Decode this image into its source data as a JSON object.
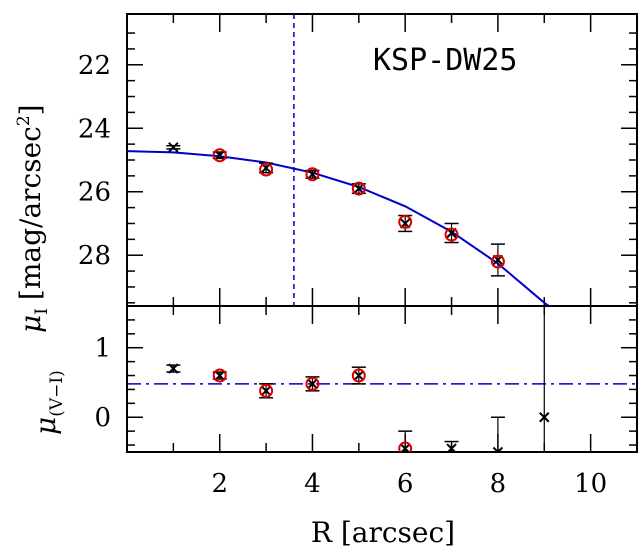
{
  "chart_data": [
    {
      "type": "scatter",
      "title": "KSP-DW25",
      "ylabel_main": "μ",
      "ylabel_sub": "I",
      "ylabel_bracket": "[mag/arcsec",
      "ylabel_sup": "2",
      "ylabel_close": "]",
      "xlim": [
        0,
        11
      ],
      "ylim": [
        29.6,
        20.4
      ],
      "y_inverted": true,
      "yticks": [
        22,
        24,
        26,
        28
      ],
      "series": [
        {
          "marker": "x",
          "color": "#000000",
          "points": [
            {
              "x": 1,
              "y": 24.6,
              "err": 0.05
            },
            {
              "x": 2,
              "y": 24.85,
              "err": 0.1
            },
            {
              "x": 3,
              "y": 25.25,
              "err": 0.15
            },
            {
              "x": 4,
              "y": 25.45,
              "err": 0.12
            },
            {
              "x": 5,
              "y": 25.9,
              "err": 0.15
            },
            {
              "x": 6,
              "y": 27.0,
              "err": 0.25
            },
            {
              "x": 7,
              "y": 27.3,
              "err": 0.3
            },
            {
              "x": 8,
              "y": 28.15,
              "err": 0.5
            }
          ]
        },
        {
          "marker": "circle",
          "color": "#dd0000",
          "points": [
            {
              "x": 2,
              "y": 24.85
            },
            {
              "x": 3,
              "y": 25.3
            },
            {
              "x": 4,
              "y": 25.45
            },
            {
              "x": 5,
              "y": 25.9
            },
            {
              "x": 6,
              "y": 26.95
            },
            {
              "x": 7,
              "y": 27.35
            },
            {
              "x": 8,
              "y": 28.2
            }
          ]
        }
      ],
      "fit_curve": {
        "color": "#0000cc",
        "style": "solid",
        "points": [
          {
            "x": 0,
            "y": 24.72
          },
          {
            "x": 1,
            "y": 24.76
          },
          {
            "x": 2,
            "y": 24.88
          },
          {
            "x": 3,
            "y": 25.08
          },
          {
            "x": 4,
            "y": 25.4
          },
          {
            "x": 5,
            "y": 25.85
          },
          {
            "x": 6,
            "y": 26.46
          },
          {
            "x": 7,
            "y": 27.26
          },
          {
            "x": 8,
            "y": 28.26
          },
          {
            "x": 9,
            "y": 29.5
          },
          {
            "x": 9.1,
            "y": 29.6
          }
        ]
      },
      "vline": {
        "x": 3.6,
        "color": "#0000cc",
        "style": "dashed"
      },
      "grid": false
    },
    {
      "type": "scatter",
      "ylabel_main": "μ",
      "ylabel_sub": "(V−I)",
      "xlabel": "R [arcsec]",
      "xlim": [
        0,
        11
      ],
      "ylim": [
        -0.5,
        1.6
      ],
      "xticks": [
        2,
        4,
        6,
        8,
        10
      ],
      "yticks": [
        0,
        1
      ],
      "series": [
        {
          "marker": "x",
          "color": "#000000",
          "points": [
            {
              "x": 1,
              "y": 0.7,
              "err": 0.05
            },
            {
              "x": 2,
              "y": 0.6,
              "err": 0.05
            },
            {
              "x": 3,
              "y": 0.38,
              "err": 0.1
            },
            {
              "x": 4,
              "y": 0.48,
              "err": 0.1
            },
            {
              "x": 5,
              "y": 0.6,
              "err": 0.12
            },
            {
              "x": 6,
              "y": -0.45,
              "err": 0.25
            },
            {
              "x": 7,
              "y": -0.45,
              "err": 0.1
            },
            {
              "x": 8,
              "y": -0.5,
              "err": 0.5
            },
            {
              "x": 9,
              "y": 0.0,
              "err": 1.8
            }
          ]
        },
        {
          "marker": "circle",
          "color": "#dd0000",
          "points": [
            {
              "x": 2,
              "y": 0.6
            },
            {
              "x": 3,
              "y": 0.38
            },
            {
              "x": 4,
              "y": 0.48
            },
            {
              "x": 5,
              "y": 0.6
            },
            {
              "x": 6,
              "y": -0.45
            }
          ]
        }
      ],
      "hline": {
        "y": 0.48,
        "color": "#0000cc",
        "style": "dashdot"
      },
      "grid": false
    }
  ]
}
